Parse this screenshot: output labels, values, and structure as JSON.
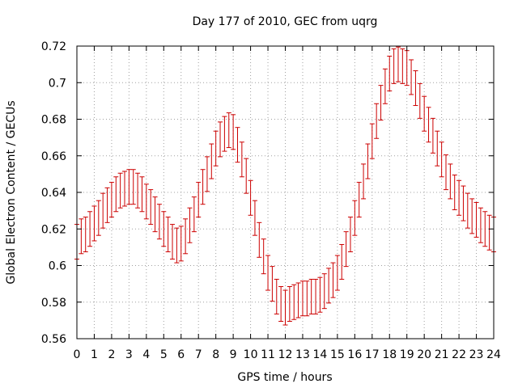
{
  "chart_data": {
    "type": "scatter",
    "title": "Day 177 of 2010, GEC from uqrg",
    "xlabel": "GPS time / hours",
    "ylabel": "Global Electron Content / GECUs",
    "xlim": [
      0,
      24
    ],
    "ylim": [
      0.56,
      0.72
    ],
    "xticks": [
      0,
      1,
      2,
      3,
      4,
      5,
      6,
      7,
      8,
      9,
      10,
      11,
      12,
      13,
      14,
      15,
      16,
      17,
      18,
      19,
      20,
      21,
      22,
      23,
      24
    ],
    "yticks": [
      0.56,
      0.58,
      0.6,
      0.62,
      0.64,
      0.66,
      0.68,
      0.7,
      0.72
    ],
    "ytick_labels": [
      "0.56",
      "0.58",
      "0.6",
      "0.62",
      "0.64",
      "0.66",
      "0.68",
      "0.7",
      "0.72"
    ],
    "grid": true,
    "color": "#cc0000",
    "error": 0.0095,
    "series": [
      {
        "x": [
          0.0,
          0.25,
          0.5,
          0.75,
          1.0,
          1.25,
          1.5,
          1.75,
          2.0,
          2.25,
          2.5,
          2.75,
          3.0,
          3.25,
          3.5,
          3.75,
          4.0,
          4.25,
          4.5,
          4.75,
          5.0,
          5.25,
          5.5,
          5.75,
          6.0,
          6.25,
          6.5,
          6.75,
          7.0,
          7.25,
          7.5,
          7.75,
          8.0,
          8.25,
          8.5,
          8.75,
          9.0,
          9.25,
          9.5,
          9.75,
          10.0,
          10.25,
          10.5,
          10.75,
          11.0,
          11.25,
          11.5,
          11.75,
          12.0,
          12.25,
          12.5,
          12.75,
          13.0,
          13.25,
          13.5,
          13.75,
          14.0,
          14.25,
          14.5,
          14.75,
          15.0,
          15.25,
          15.5,
          15.75,
          16.0,
          16.25,
          16.5,
          16.75,
          17.0,
          17.25,
          17.5,
          17.75,
          18.0,
          18.25,
          18.5,
          18.75,
          19.0,
          19.25,
          19.5,
          19.75,
          20.0,
          20.25,
          20.5,
          20.75,
          21.0,
          21.25,
          21.5,
          21.75,
          22.0,
          22.25,
          22.5,
          22.75,
          23.0,
          23.25,
          23.5,
          23.75,
          24.0
        ],
        "y": [
          0.613,
          0.616,
          0.617,
          0.62,
          0.623,
          0.626,
          0.63,
          0.633,
          0.636,
          0.639,
          0.641,
          0.642,
          0.643,
          0.643,
          0.641,
          0.639,
          0.635,
          0.632,
          0.628,
          0.624,
          0.62,
          0.617,
          0.613,
          0.611,
          0.612,
          0.616,
          0.622,
          0.628,
          0.636,
          0.643,
          0.65,
          0.657,
          0.664,
          0.669,
          0.672,
          0.674,
          0.673,
          0.666,
          0.658,
          0.649,
          0.637,
          0.626,
          0.614,
          0.605,
          0.596,
          0.59,
          0.583,
          0.579,
          0.577,
          0.579,
          0.58,
          0.581,
          0.582,
          0.582,
          0.583,
          0.583,
          0.584,
          0.586,
          0.589,
          0.592,
          0.596,
          0.602,
          0.609,
          0.617,
          0.626,
          0.636,
          0.646,
          0.657,
          0.668,
          0.679,
          0.689,
          0.698,
          0.705,
          0.709,
          0.71,
          0.709,
          0.708,
          0.703,
          0.697,
          0.69,
          0.683,
          0.677,
          0.671,
          0.664,
          0.658,
          0.651,
          0.646,
          0.64,
          0.637,
          0.634,
          0.63,
          0.627,
          0.625,
          0.622,
          0.62,
          0.618,
          0.617
        ]
      }
    ]
  }
}
